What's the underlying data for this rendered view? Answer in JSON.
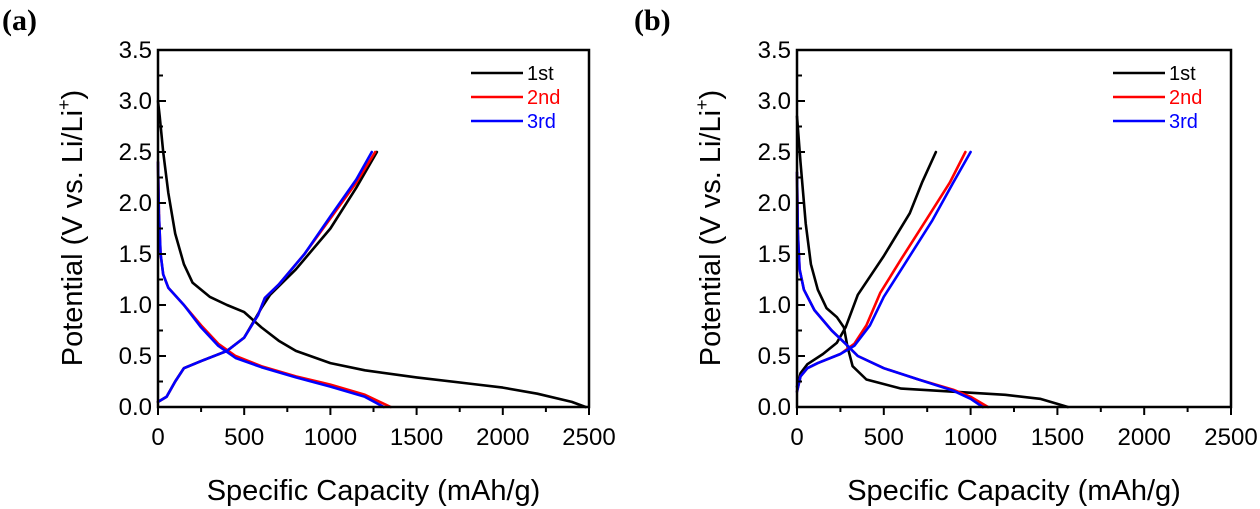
{
  "chart_data": [
    {
      "panel_label": "(a)",
      "type": "line",
      "xlabel": "Specific Capacity (mAh/g)",
      "ylabel": "Potential (V vs. Li/Li",
      "ylabel_sup": "+",
      "ylabel_close": ")",
      "xlim": [
        0,
        2500
      ],
      "ylim": [
        0,
        3.5
      ],
      "xticks": [
        0,
        500,
        1000,
        1500,
        2000,
        2500
      ],
      "yticks": [
        0.0,
        0.5,
        1.0,
        1.5,
        2.0,
        2.5,
        3.0,
        3.5
      ],
      "ytick_labels": [
        "0.0",
        "0.5",
        "1.0",
        "1.5",
        "2.0",
        "2.5",
        "3.0",
        "3.5"
      ],
      "xtick_labels": [
        "0",
        "500",
        "1000",
        "1500",
        "2000",
        "2500"
      ],
      "legend": "top-right",
      "grid": false,
      "series": [
        {
          "name": "1st",
          "color": "#000000",
          "discharge": [
            [
              0,
              3.0
            ],
            [
              10,
              2.85
            ],
            [
              30,
              2.5
            ],
            [
              60,
              2.1
            ],
            [
              100,
              1.7
            ],
            [
              150,
              1.4
            ],
            [
              200,
              1.22
            ],
            [
              300,
              1.08
            ],
            [
              400,
              1.0
            ],
            [
              500,
              0.93
            ],
            [
              600,
              0.78
            ],
            [
              700,
              0.65
            ],
            [
              800,
              0.55
            ],
            [
              1000,
              0.43
            ],
            [
              1200,
              0.36
            ],
            [
              1500,
              0.29
            ],
            [
              1800,
              0.23
            ],
            [
              2000,
              0.19
            ],
            [
              2200,
              0.13
            ],
            [
              2400,
              0.05
            ],
            [
              2480,
              0.0
            ]
          ],
          "charge": [
            [
              0,
              0.05
            ],
            [
              50,
              0.1
            ],
            [
              100,
              0.25
            ],
            [
              150,
              0.38
            ],
            [
              250,
              0.45
            ],
            [
              400,
              0.55
            ],
            [
              500,
              0.68
            ],
            [
              600,
              0.97
            ],
            [
              650,
              1.1
            ],
            [
              800,
              1.35
            ],
            [
              1000,
              1.75
            ],
            [
              1150,
              2.15
            ],
            [
              1270,
              2.5
            ]
          ]
        },
        {
          "name": "2nd",
          "color": "#ff0000",
          "discharge": [
            [
              0,
              2.4
            ],
            [
              5,
              1.9
            ],
            [
              15,
              1.5
            ],
            [
              30,
              1.3
            ],
            [
              60,
              1.17
            ],
            [
              150,
              1.0
            ],
            [
              250,
              0.8
            ],
            [
              350,
              0.62
            ],
            [
              450,
              0.5
            ],
            [
              600,
              0.4
            ],
            [
              800,
              0.3
            ],
            [
              1000,
              0.22
            ],
            [
              1200,
              0.12
            ],
            [
              1350,
              0.0
            ]
          ],
          "charge": [
            [
              0,
              0.05
            ],
            [
              50,
              0.1
            ],
            [
              100,
              0.25
            ],
            [
              150,
              0.38
            ],
            [
              250,
              0.45
            ],
            [
              400,
              0.55
            ],
            [
              500,
              0.68
            ],
            [
              580,
              0.9
            ],
            [
              620,
              1.07
            ],
            [
              700,
              1.2
            ],
            [
              850,
              1.5
            ],
            [
              1000,
              1.85
            ],
            [
              1150,
              2.2
            ],
            [
              1260,
              2.5
            ]
          ]
        },
        {
          "name": "3rd",
          "color": "#0000ff",
          "discharge": [
            [
              0,
              2.4
            ],
            [
              5,
              1.9
            ],
            [
              15,
              1.5
            ],
            [
              30,
              1.3
            ],
            [
              60,
              1.17
            ],
            [
              150,
              1.0
            ],
            [
              250,
              0.78
            ],
            [
              350,
              0.6
            ],
            [
              450,
              0.48
            ],
            [
              600,
              0.39
            ],
            [
              800,
              0.29
            ],
            [
              1000,
              0.2
            ],
            [
              1200,
              0.1
            ],
            [
              1310,
              0.0
            ]
          ],
          "charge": [
            [
              0,
              0.05
            ],
            [
              50,
              0.1
            ],
            [
              100,
              0.25
            ],
            [
              150,
              0.38
            ],
            [
              250,
              0.45
            ],
            [
              400,
              0.55
            ],
            [
              500,
              0.68
            ],
            [
              580,
              0.9
            ],
            [
              620,
              1.07
            ],
            [
              700,
              1.2
            ],
            [
              850,
              1.5
            ],
            [
              1000,
              1.87
            ],
            [
              1150,
              2.23
            ],
            [
              1240,
              2.5
            ]
          ]
        }
      ]
    },
    {
      "panel_label": "(b)",
      "type": "line",
      "xlabel": "Specific Capacity (mAh/g)",
      "ylabel": "Potential (V vs. Li/Li",
      "ylabel_sup": "+",
      "ylabel_close": ")",
      "xlim": [
        0,
        2500
      ],
      "ylim": [
        0,
        3.5
      ],
      "xticks": [
        0,
        500,
        1000,
        1500,
        2000,
        2500
      ],
      "yticks": [
        0.0,
        0.5,
        1.0,
        1.5,
        2.0,
        2.5,
        3.0,
        3.5
      ],
      "ytick_labels": [
        "0.0",
        "0.5",
        "1.0",
        "1.5",
        "2.0",
        "2.5",
        "3.0",
        "3.5"
      ],
      "xtick_labels": [
        "0",
        "500",
        "1000",
        "1500",
        "2000",
        "2500"
      ],
      "legend": "top-right",
      "grid": false,
      "series": [
        {
          "name": "1st",
          "color": "#000000",
          "discharge": [
            [
              0,
              2.85
            ],
            [
              20,
              2.4
            ],
            [
              50,
              1.8
            ],
            [
              80,
              1.4
            ],
            [
              120,
              1.15
            ],
            [
              170,
              0.97
            ],
            [
              230,
              0.88
            ],
            [
              270,
              0.78
            ],
            [
              290,
              0.6
            ],
            [
              320,
              0.4
            ],
            [
              400,
              0.27
            ],
            [
              600,
              0.18
            ],
            [
              900,
              0.15
            ],
            [
              1200,
              0.12
            ],
            [
              1400,
              0.08
            ],
            [
              1500,
              0.03
            ],
            [
              1560,
              0.0
            ]
          ],
          "charge": [
            [
              0,
              0.2
            ],
            [
              20,
              0.33
            ],
            [
              60,
              0.42
            ],
            [
              150,
              0.52
            ],
            [
              230,
              0.63
            ],
            [
              280,
              0.78
            ],
            [
              350,
              1.1
            ],
            [
              500,
              1.48
            ],
            [
              650,
              1.9
            ],
            [
              720,
              2.2
            ],
            [
              800,
              2.5
            ]
          ]
        },
        {
          "name": "2nd",
          "color": "#ff0000",
          "discharge": [
            [
              0,
              2.3
            ],
            [
              5,
              1.7
            ],
            [
              15,
              1.35
            ],
            [
              40,
              1.15
            ],
            [
              100,
              0.95
            ],
            [
              200,
              0.75
            ],
            [
              280,
              0.62
            ],
            [
              350,
              0.5
            ],
            [
              500,
              0.38
            ],
            [
              700,
              0.27
            ],
            [
              900,
              0.17
            ],
            [
              1000,
              0.1
            ],
            [
              1100,
              0.0
            ]
          ],
          "charge": [
            [
              0,
              0.15
            ],
            [
              20,
              0.3
            ],
            [
              60,
              0.38
            ],
            [
              120,
              0.43
            ],
            [
              250,
              0.52
            ],
            [
              330,
              0.62
            ],
            [
              400,
              0.8
            ],
            [
              480,
              1.12
            ],
            [
              600,
              1.45
            ],
            [
              750,
              1.85
            ],
            [
              880,
              2.2
            ],
            [
              970,
              2.5
            ]
          ]
        },
        {
          "name": "3rd",
          "color": "#0000ff",
          "discharge": [
            [
              0,
              2.3
            ],
            [
              5,
              1.7
            ],
            [
              15,
              1.35
            ],
            [
              40,
              1.15
            ],
            [
              100,
              0.95
            ],
            [
              200,
              0.75
            ],
            [
              280,
              0.62
            ],
            [
              350,
              0.5
            ],
            [
              500,
              0.38
            ],
            [
              700,
              0.27
            ],
            [
              900,
              0.16
            ],
            [
              1000,
              0.08
            ],
            [
              1070,
              0.0
            ]
          ],
          "charge": [
            [
              0,
              0.15
            ],
            [
              20,
              0.3
            ],
            [
              60,
              0.38
            ],
            [
              120,
              0.43
            ],
            [
              250,
              0.52
            ],
            [
              330,
              0.6
            ],
            [
              420,
              0.8
            ],
            [
              500,
              1.08
            ],
            [
              620,
              1.4
            ],
            [
              780,
              1.83
            ],
            [
              900,
              2.2
            ],
            [
              1000,
              2.5
            ]
          ]
        }
      ]
    }
  ]
}
